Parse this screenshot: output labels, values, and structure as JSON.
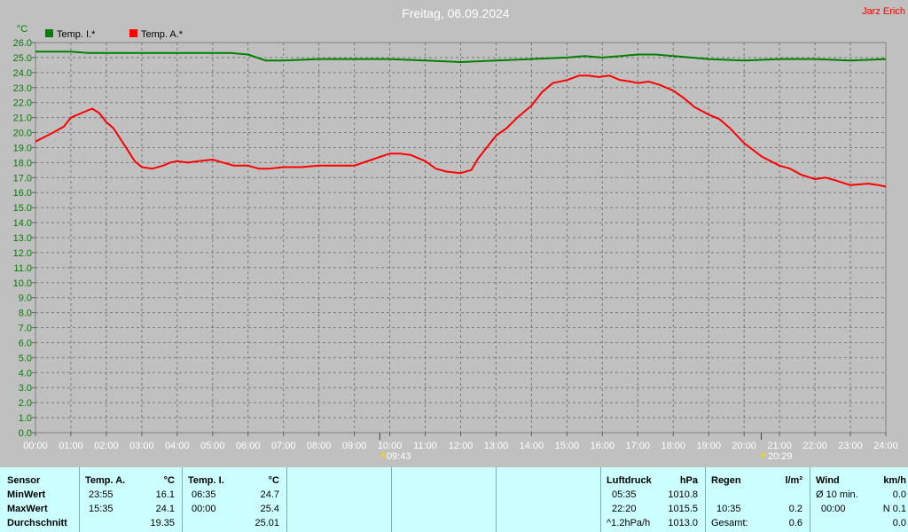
{
  "header": {
    "title": "Freitag, 06.09.2024",
    "author": "Jarz Erich"
  },
  "legend": [
    {
      "label": "Temp. I.*",
      "color": "#008000"
    },
    {
      "label": "Temp. A.*",
      "color": "#ff0000"
    }
  ],
  "sun": {
    "sunrise": "09:43",
    "sunset": "20:29"
  },
  "chart_data": {
    "type": "line",
    "ylabel": "°C",
    "ylim": [
      0,
      26
    ],
    "yticks": [
      "0.0",
      "1.0",
      "2.0",
      "3.0",
      "4.0",
      "5.0",
      "6.0",
      "7.0",
      "8.0",
      "9.0",
      "10.0",
      "11.0",
      "12.0",
      "13.0",
      "14.0",
      "15.0",
      "16.0",
      "17.0",
      "18.0",
      "19.0",
      "20.0",
      "21.0",
      "22.0",
      "23.0",
      "24.0",
      "25.0",
      "26.0"
    ],
    "xlim": [
      0,
      24
    ],
    "xticks": [
      "00:00",
      "01:00",
      "02:00",
      "03:00",
      "04:00",
      "05:00",
      "06:00",
      "07:00",
      "08:00",
      "09:00",
      "10:00",
      "11:00",
      "12:00",
      "13:00",
      "14:00",
      "15:00",
      "16:00",
      "17:00",
      "18:00",
      "19:00",
      "20:00",
      "21:00",
      "22:00",
      "23:00",
      "24:00"
    ],
    "grid": true,
    "legend_position": "top-left",
    "series": [
      {
        "name": "Temp. I.*",
        "color": "#008000",
        "x": [
          0,
          1,
          1.5,
          2,
          3,
          4,
          5,
          5.5,
          6,
          6.5,
          7,
          8,
          9,
          10,
          11,
          12,
          13,
          14,
          15,
          15.5,
          16,
          16.5,
          17,
          17.5,
          18,
          19,
          20,
          21,
          22,
          23,
          24
        ],
        "y": [
          25.4,
          25.4,
          25.3,
          25.3,
          25.3,
          25.3,
          25.3,
          25.3,
          25.2,
          24.8,
          24.8,
          24.9,
          24.9,
          24.9,
          24.8,
          24.7,
          24.8,
          24.9,
          25.0,
          25.1,
          25.0,
          25.1,
          25.2,
          25.2,
          25.1,
          24.9,
          24.8,
          24.9,
          24.9,
          24.8,
          24.9
        ]
      },
      {
        "name": "Temp. A.*",
        "color": "#ff0000",
        "x": [
          0,
          0.5,
          0.8,
          1,
          1.3,
          1.6,
          1.8,
          2,
          2.2,
          2.5,
          2.8,
          3,
          3.3,
          3.6,
          3.8,
          4,
          4.3,
          4.6,
          5,
          5.3,
          5.6,
          6,
          6.3,
          6.6,
          7,
          7.5,
          8,
          8.5,
          9,
          9.5,
          10,
          10.3,
          10.6,
          11,
          11.3,
          11.6,
          12,
          12.3,
          12.5,
          12.8,
          13,
          13.3,
          13.6,
          14,
          14.3,
          14.6,
          15,
          15.35,
          15.6,
          15.9,
          16.2,
          16.5,
          16.8,
          17,
          17.3,
          17.6,
          18,
          18.3,
          18.6,
          19,
          19.3,
          19.6,
          20,
          20.5,
          21,
          21.3,
          21.6,
          22,
          22.3,
          22.6,
          23,
          23.5,
          23.8,
          24
        ],
        "y": [
          19.4,
          20.0,
          20.4,
          21.0,
          21.3,
          21.6,
          21.3,
          20.7,
          20.3,
          19.2,
          18.1,
          17.7,
          17.6,
          17.8,
          18.0,
          18.1,
          18.0,
          18.1,
          18.2,
          18.0,
          17.8,
          17.8,
          17.6,
          17.6,
          17.7,
          17.7,
          17.8,
          17.8,
          17.8,
          18.2,
          18.6,
          18.6,
          18.5,
          18.1,
          17.6,
          17.4,
          17.3,
          17.5,
          18.3,
          19.2,
          19.8,
          20.3,
          21.0,
          21.8,
          22.7,
          23.3,
          23.5,
          23.8,
          23.8,
          23.7,
          23.8,
          23.5,
          23.4,
          23.3,
          23.4,
          23.2,
          22.8,
          22.3,
          21.7,
          21.2,
          20.9,
          20.3,
          19.3,
          18.4,
          17.8,
          17.6,
          17.2,
          16.9,
          17.0,
          16.8,
          16.5,
          16.6,
          16.5,
          16.4
        ]
      }
    ]
  },
  "stats": {
    "sensor": {
      "header": "Sensor",
      "rows": [
        "MinWert",
        "MaxWert",
        "Durchschnitt"
      ]
    },
    "temp_a": {
      "header": "Temp. A.",
      "unit": "°C",
      "min_time": "23:55",
      "min": "16.1",
      "max_time": "15:35",
      "max": "24.1",
      "avg": "19.35"
    },
    "temp_i": {
      "header": "Temp. I.",
      "unit": "°C",
      "min_time": "06:35",
      "min": "24.7",
      "max_time": "00:00",
      "max": "25.4",
      "avg": "25.01"
    },
    "pressure": {
      "header": "Luftdruck",
      "unit": "hPa",
      "min_time": "05:35",
      "min": "1010.8",
      "max_time": "22:20",
      "max": "1015.5",
      "trend": "^1.2hPa/h",
      "avg": "1013.0"
    },
    "rain": {
      "header": "Regen",
      "unit": "l/m²",
      "max_time": "10:35",
      "max": "0.2",
      "total_label": "Gesamt:",
      "total": "0.6"
    },
    "wind": {
      "header": "Wind",
      "unit": "km/h",
      "avg_label": "Ø 10 min.",
      "avg": "0.0",
      "max_time": "00:00",
      "max": "N 0.1",
      "extra": "0.0"
    }
  }
}
